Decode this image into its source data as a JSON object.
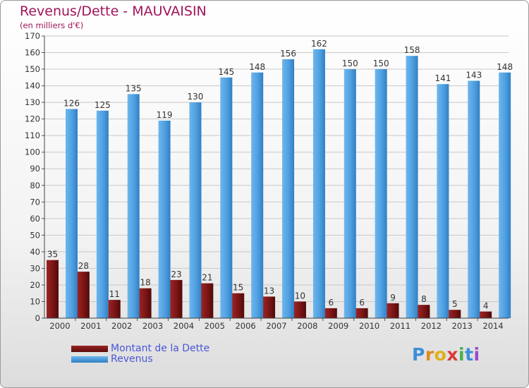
{
  "header": {
    "title": "Revenus/Dette - MAUVAISIN",
    "subtitle": "(en milliers d'€)"
  },
  "colors": {
    "dette": "#7a1414",
    "revenus": "#4f9fe0",
    "title": "#a0145a",
    "legend_text": "#4a56d8"
  },
  "chart_data": {
    "type": "bar",
    "title": "Revenus/Dette - MAUVAISIN",
    "ylabel": "(en milliers d'€)",
    "xlabel": "",
    "ylim": [
      0,
      170
    ],
    "ytick_step": 10,
    "grid": true,
    "legend_position": "bottom-left",
    "categories": [
      "2000",
      "2001",
      "2002",
      "2003",
      "2004",
      "2005",
      "2006",
      "2007",
      "2008",
      "2009",
      "2010",
      "2011",
      "2012",
      "2013",
      "2014"
    ],
    "series": [
      {
        "name": "Montant de la Dette",
        "values": [
          35,
          28,
          11,
          18,
          23,
          21,
          15,
          13,
          10,
          6,
          6,
          9,
          8,
          5,
          4
        ]
      },
      {
        "name": "Revenus",
        "values": [
          126,
          125,
          135,
          119,
          130,
          145,
          148,
          156,
          162,
          150,
          150,
          158,
          141,
          143,
          148
        ]
      }
    ]
  },
  "legend": {
    "items": [
      {
        "label": "Montant de la Dette"
      },
      {
        "label": "Revenus"
      }
    ]
  },
  "logo": {
    "letters": [
      "P",
      "r",
      "o",
      "x",
      "i",
      "t",
      "i"
    ],
    "colors": [
      "#3a8fd8",
      "#e08a1c",
      "#e0b01c",
      "#d83a3a",
      "#4ab04a",
      "#3a8fd8",
      "#9a4ad0"
    ]
  }
}
